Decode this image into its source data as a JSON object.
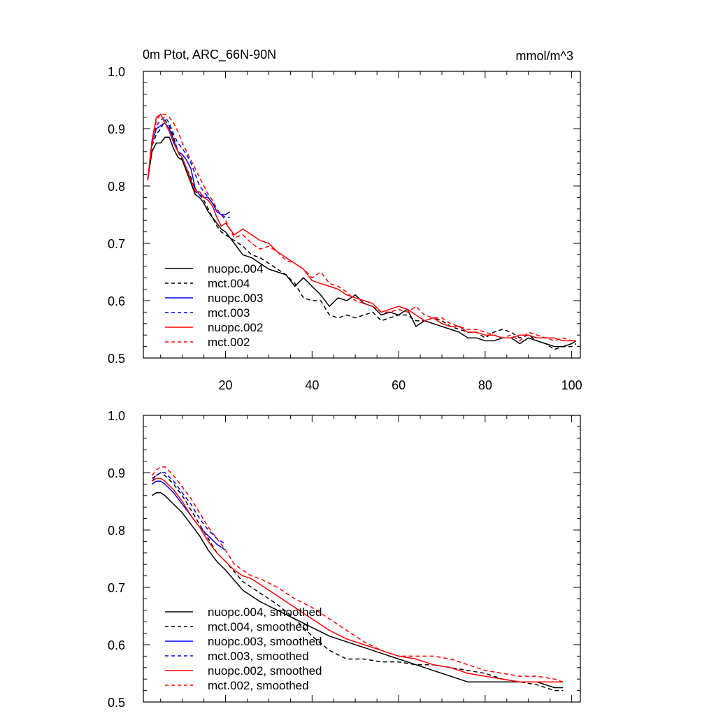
{
  "title_left": "0m Ptot, ARC_66N-90N",
  "title_right": "mmol/m^3",
  "chart_data": [
    {
      "type": "line",
      "panel": "raw",
      "title": "0m Ptot, ARC_66N-90N",
      "units": "mmol/m^3",
      "xlim": [
        1,
        102
      ],
      "ylim": [
        0.5,
        1.0
      ],
      "xticks": [
        20,
        40,
        60,
        80,
        100
      ],
      "yticks": [
        0.5,
        0.6,
        0.7,
        0.8,
        0.9,
        1.0
      ],
      "ytick_labels": [
        "0.5",
        "0.6",
        "0.7",
        "0.8",
        "0.9",
        "1.0"
      ],
      "xtick_labels": [
        "20",
        "40",
        "60",
        "80",
        "100"
      ],
      "legend_position": "bottom-left",
      "series": [
        {
          "name": "nuopc.004",
          "color": "#000000",
          "dash": "solid",
          "x": [
            2,
            3,
            4,
            5,
            6,
            7,
            8,
            9,
            10,
            11,
            12,
            13,
            14,
            15,
            16,
            17,
            18,
            19,
            20,
            22,
            24,
            26,
            28,
            30,
            32,
            34,
            36,
            38,
            40,
            42,
            44,
            46,
            48,
            50,
            52,
            54,
            56,
            58,
            60,
            62,
            64,
            66,
            68,
            70,
            72,
            74,
            76,
            78,
            80,
            82,
            84,
            86,
            88,
            90,
            92,
            94,
            96,
            98,
            100,
            101
          ],
          "y": [
            0.81,
            0.86,
            0.875,
            0.875,
            0.885,
            0.885,
            0.865,
            0.85,
            0.845,
            0.825,
            0.805,
            0.785,
            0.78,
            0.77,
            0.755,
            0.745,
            0.735,
            0.725,
            0.72,
            0.7,
            0.68,
            0.675,
            0.665,
            0.655,
            0.65,
            0.645,
            0.625,
            0.64,
            0.625,
            0.61,
            0.59,
            0.605,
            0.6,
            0.61,
            0.595,
            0.59,
            0.575,
            0.58,
            0.575,
            0.585,
            0.555,
            0.565,
            0.56,
            0.555,
            0.55,
            0.545,
            0.535,
            0.535,
            0.53,
            0.53,
            0.535,
            0.535,
            0.525,
            0.535,
            0.53,
            0.525,
            0.52,
            0.52,
            0.525,
            0.53
          ]
        },
        {
          "name": "mct.004",
          "color": "#000000",
          "dash": "dashed",
          "x": [
            2,
            3,
            4,
            5,
            6,
            7,
            8,
            9,
            10,
            11,
            12,
            13,
            14,
            15,
            16,
            17,
            18,
            19,
            20,
            22,
            24,
            26,
            28,
            30,
            32,
            34,
            36,
            38,
            40,
            42,
            44,
            46,
            48,
            50,
            52,
            54,
            56,
            58,
            60,
            62,
            64,
            66,
            68,
            70,
            72,
            74,
            76,
            78,
            80,
            82,
            84,
            86,
            88,
            90,
            92,
            94,
            96,
            98,
            100,
            101
          ],
          "y": [
            0.81,
            0.87,
            0.89,
            0.9,
            0.915,
            0.905,
            0.885,
            0.86,
            0.845,
            0.83,
            0.815,
            0.79,
            0.785,
            0.775,
            0.76,
            0.745,
            0.73,
            0.72,
            0.715,
            0.705,
            0.695,
            0.68,
            0.675,
            0.665,
            0.655,
            0.645,
            0.63,
            0.605,
            0.6,
            0.6,
            0.575,
            0.57,
            0.575,
            0.57,
            0.575,
            0.58,
            0.565,
            0.57,
            0.575,
            0.575,
            0.565,
            0.565,
            0.57,
            0.565,
            0.555,
            0.55,
            0.545,
            0.545,
            0.535,
            0.545,
            0.55,
            0.545,
            0.535,
            0.54,
            0.53,
            0.525,
            0.515,
            0.52,
            0.52,
            0.525
          ]
        },
        {
          "name": "nuopc.003",
          "color": "#0000ff",
          "dash": "solid",
          "x": [
            2,
            3,
            4,
            5,
            6,
            7,
            8,
            9,
            10,
            11,
            12,
            13,
            14,
            15,
            16,
            17,
            18,
            19,
            20,
            21
          ],
          "y": [
            0.81,
            0.875,
            0.9,
            0.905,
            0.91,
            0.9,
            0.88,
            0.86,
            0.855,
            0.845,
            0.83,
            0.795,
            0.785,
            0.78,
            0.78,
            0.77,
            0.755,
            0.75,
            0.75,
            0.755
          ]
        },
        {
          "name": "mct.003",
          "color": "#0000ff",
          "dash": "dashed",
          "x": [
            2,
            3,
            4,
            5,
            6,
            7,
            8,
            9,
            10,
            11,
            12,
            13,
            14,
            15,
            16,
            17,
            18,
            19,
            20,
            21
          ],
          "y": [
            0.81,
            0.88,
            0.905,
            0.915,
            0.92,
            0.91,
            0.89,
            0.875,
            0.865,
            0.855,
            0.84,
            0.82,
            0.8,
            0.79,
            0.78,
            0.77,
            0.76,
            0.75,
            0.745,
            0.745
          ]
        },
        {
          "name": "nuopc.002",
          "color": "#ff0000",
          "dash": "solid",
          "x": [
            2,
            3,
            4,
            5,
            6,
            7,
            8,
            9,
            10,
            11,
            12,
            13,
            14,
            15,
            16,
            17,
            18,
            19,
            20,
            22,
            24,
            26,
            28,
            30,
            32,
            34,
            36,
            38,
            40,
            42,
            44,
            46,
            48,
            50,
            52,
            54,
            56,
            58,
            60,
            62,
            64,
            66,
            68,
            70,
            72,
            74,
            76,
            78,
            80,
            82,
            84,
            86,
            88,
            90,
            92,
            94,
            96,
            98,
            100,
            101
          ],
          "y": [
            0.81,
            0.88,
            0.92,
            0.925,
            0.91,
            0.895,
            0.875,
            0.86,
            0.85,
            0.83,
            0.81,
            0.79,
            0.79,
            0.78,
            0.775,
            0.765,
            0.745,
            0.73,
            0.735,
            0.715,
            0.725,
            0.715,
            0.705,
            0.7,
            0.685,
            0.675,
            0.665,
            0.655,
            0.635,
            0.63,
            0.625,
            0.62,
            0.61,
            0.605,
            0.6,
            0.595,
            0.58,
            0.585,
            0.59,
            0.585,
            0.575,
            0.565,
            0.57,
            0.56,
            0.555,
            0.555,
            0.545,
            0.545,
            0.54,
            0.54,
            0.535,
            0.535,
            0.54,
            0.54,
            0.535,
            0.535,
            0.535,
            0.53,
            0.53,
            0.53
          ]
        },
        {
          "name": "mct.002",
          "color": "#ff0000",
          "dash": "dashed",
          "x": [
            2,
            3,
            4,
            5,
            6,
            7,
            8,
            9,
            10,
            11,
            12,
            13,
            14,
            15,
            16,
            17,
            18,
            19,
            20,
            22,
            24,
            26,
            28,
            30,
            32,
            34,
            36,
            38,
            40,
            42,
            44,
            46,
            48,
            50,
            52,
            54,
            56,
            58,
            60,
            62,
            64,
            66,
            68,
            70,
            72,
            74,
            76,
            78,
            80,
            82,
            84,
            86,
            88,
            90,
            92,
            94,
            96,
            98,
            100,
            101
          ],
          "y": [
            0.81,
            0.87,
            0.915,
            0.925,
            0.925,
            0.92,
            0.91,
            0.895,
            0.875,
            0.86,
            0.845,
            0.83,
            0.815,
            0.8,
            0.785,
            0.775,
            0.76,
            0.75,
            0.74,
            0.71,
            0.715,
            0.7,
            0.69,
            0.695,
            0.685,
            0.67,
            0.665,
            0.655,
            0.64,
            0.65,
            0.63,
            0.625,
            0.615,
            0.6,
            0.595,
            0.59,
            0.58,
            0.58,
            0.585,
            0.58,
            0.59,
            0.575,
            0.57,
            0.57,
            0.56,
            0.555,
            0.55,
            0.55,
            0.545,
            0.54,
            0.535,
            0.54,
            0.53,
            0.545,
            0.54,
            0.535,
            0.53,
            0.535,
            0.53,
            0.53
          ]
        }
      ]
    },
    {
      "type": "line",
      "panel": "smoothed",
      "xlim": [
        1,
        102
      ],
      "ylim": [
        0.5,
        1.0
      ],
      "yticks": [
        0.5,
        0.6,
        0.7,
        0.8,
        0.9,
        1.0
      ],
      "ytick_labels": [
        "0.5",
        "0.6",
        "0.7",
        "0.8",
        "0.9",
        "1.0"
      ],
      "legend_position": "bottom-left",
      "series": [
        {
          "name": "nuopc.004, smoothed",
          "color": "#000000",
          "dash": "solid",
          "x": [
            3,
            4,
            5,
            6,
            8,
            10,
            12,
            14,
            16,
            18,
            20,
            24,
            28,
            32,
            36,
            40,
            44,
            48,
            52,
            56,
            60,
            64,
            68,
            72,
            76,
            80,
            84,
            88,
            92,
            96,
            98
          ],
          "y": [
            0.86,
            0.865,
            0.865,
            0.86,
            0.845,
            0.83,
            0.81,
            0.79,
            0.765,
            0.745,
            0.73,
            0.695,
            0.675,
            0.66,
            0.645,
            0.63,
            0.615,
            0.605,
            0.595,
            0.585,
            0.575,
            0.565,
            0.555,
            0.545,
            0.535,
            0.535,
            0.535,
            0.535,
            0.535,
            0.525,
            0.525
          ]
        },
        {
          "name": "mct.004, smoothed",
          "color": "#000000",
          "dash": "dashed",
          "x": [
            3,
            4,
            5,
            6,
            8,
            10,
            12,
            14,
            16,
            18,
            20,
            24,
            28,
            32,
            36,
            40,
            44,
            48,
            52,
            56,
            60,
            64,
            68,
            72,
            76,
            80,
            84,
            88,
            92,
            96,
            98
          ],
          "y": [
            0.89,
            0.895,
            0.9,
            0.895,
            0.88,
            0.86,
            0.835,
            0.81,
            0.785,
            0.76,
            0.745,
            0.71,
            0.69,
            0.67,
            0.645,
            0.615,
            0.59,
            0.575,
            0.575,
            0.57,
            0.57,
            0.565,
            0.565,
            0.56,
            0.555,
            0.55,
            0.54,
            0.535,
            0.53,
            0.52,
            0.52
          ]
        },
        {
          "name": "nuopc.003, smoothed",
          "color": "#0000ff",
          "dash": "solid",
          "x": [
            3,
            4,
            5,
            6,
            8,
            10,
            12,
            14,
            16,
            18,
            20
          ],
          "y": [
            0.88,
            0.885,
            0.885,
            0.88,
            0.865,
            0.845,
            0.825,
            0.805,
            0.79,
            0.775,
            0.765
          ]
        },
        {
          "name": "mct.003, smoothed",
          "color": "#0000ff",
          "dash": "dashed",
          "x": [
            3,
            4,
            5,
            6,
            8,
            10,
            12,
            14,
            16,
            18,
            20
          ],
          "y": [
            0.885,
            0.895,
            0.9,
            0.9,
            0.885,
            0.865,
            0.845,
            0.82,
            0.8,
            0.785,
            0.775
          ]
        },
        {
          "name": "nuopc.002, smoothed",
          "color": "#ff0000",
          "dash": "solid",
          "x": [
            3,
            4,
            5,
            6,
            8,
            10,
            12,
            14,
            16,
            18,
            20,
            22,
            24,
            26,
            28,
            32,
            36,
            40,
            44,
            48,
            52,
            56,
            60,
            64,
            68,
            72,
            76,
            80,
            84,
            88,
            92,
            96,
            98
          ],
          "y": [
            0.885,
            0.89,
            0.89,
            0.885,
            0.87,
            0.85,
            0.825,
            0.805,
            0.78,
            0.76,
            0.745,
            0.73,
            0.72,
            0.715,
            0.705,
            0.685,
            0.665,
            0.645,
            0.625,
            0.61,
            0.6,
            0.59,
            0.58,
            0.575,
            0.565,
            0.56,
            0.55,
            0.545,
            0.54,
            0.535,
            0.535,
            0.535,
            0.535
          ]
        },
        {
          "name": "mct.002, smoothed",
          "color": "#ff0000",
          "dash": "dashed",
          "x": [
            3,
            4,
            5,
            6,
            8,
            10,
            12,
            14,
            16,
            18,
            20,
            22,
            24,
            26,
            28,
            32,
            36,
            40,
            44,
            48,
            52,
            56,
            60,
            64,
            68,
            72,
            76,
            80,
            84,
            88,
            92,
            96,
            98
          ],
          "y": [
            0.895,
            0.905,
            0.91,
            0.91,
            0.895,
            0.875,
            0.855,
            0.83,
            0.805,
            0.785,
            0.765,
            0.74,
            0.73,
            0.72,
            0.715,
            0.7,
            0.68,
            0.665,
            0.645,
            0.625,
            0.605,
            0.59,
            0.58,
            0.58,
            0.58,
            0.575,
            0.565,
            0.555,
            0.55,
            0.545,
            0.545,
            0.54,
            0.535
          ]
        }
      ]
    }
  ]
}
